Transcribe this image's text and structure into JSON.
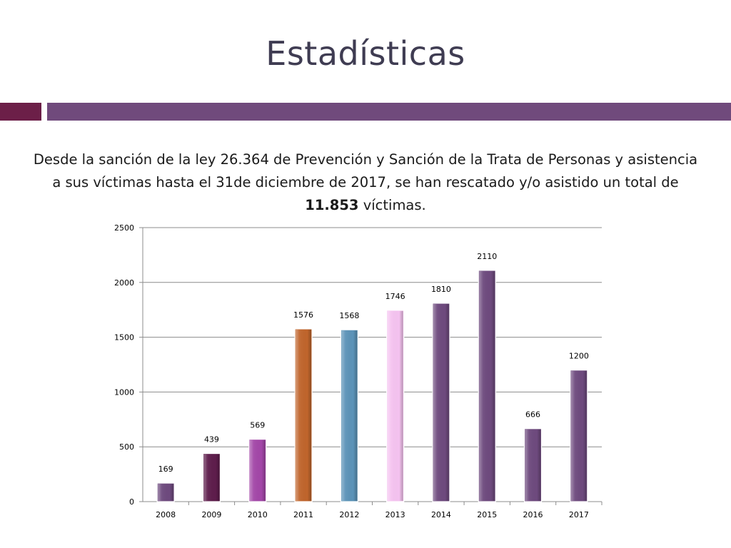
{
  "slide": {
    "title": "Estadísticas",
    "description_before": "Desde la sanción de la ley 26.364 de Prevención y Sanción de la Trata de Personas y asistencia a sus víctimas hasta el 31de diciembre de 2017, se han rescatado y/o asistido un total de ",
    "description_bold": "11.853",
    "description_after": " víctimas.",
    "accent_colors": {
      "left_bar": "#6c1f48",
      "right_bar": "#704a7c",
      "title_text": "#3f3c52"
    }
  },
  "chart_data": {
    "type": "bar",
    "title": "",
    "xlabel": "",
    "ylabel": "",
    "categories": [
      "2008",
      "2009",
      "2010",
      "2011",
      "2012",
      "2013",
      "2014",
      "2015",
      "2016",
      "2017"
    ],
    "values": [
      169,
      439,
      569,
      1576,
      1568,
      1746,
      1810,
      2110,
      666,
      1200
    ],
    "data_labels": [
      "169",
      "439",
      "569",
      "1576",
      "1568",
      "1746",
      "1810",
      "2110",
      "666",
      "1200"
    ],
    "bar_colors": [
      "#6e4a7e",
      "#5e1d4c",
      "#a347a8",
      "#c0652c",
      "#5b93b8",
      "#f5c3f0",
      "#6e4a7e",
      "#6e4a7e",
      "#6e4a7e",
      "#6e4a7e"
    ],
    "ylim": [
      0,
      2500
    ],
    "yticks": [
      0,
      500,
      1000,
      1500,
      2000,
      2500
    ],
    "grid": true,
    "legend": "none"
  }
}
